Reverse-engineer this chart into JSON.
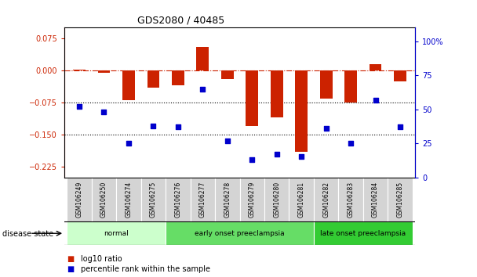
{
  "title": "GDS2080 / 40485",
  "samples": [
    "GSM106249",
    "GSM106250",
    "GSM106274",
    "GSM106275",
    "GSM106276",
    "GSM106277",
    "GSM106278",
    "GSM106279",
    "GSM106280",
    "GSM106281",
    "GSM106282",
    "GSM106283",
    "GSM106284",
    "GSM106285"
  ],
  "log10_ratio": [
    0.002,
    -0.005,
    -0.07,
    -0.04,
    -0.035,
    0.055,
    -0.02,
    -0.13,
    -0.11,
    -0.19,
    -0.065,
    -0.075,
    0.015,
    -0.025
  ],
  "percentile_rank": [
    52,
    48,
    25,
    38,
    37,
    65,
    27,
    13,
    17,
    15,
    36,
    25,
    57,
    37
  ],
  "groups": [
    {
      "label": "normal",
      "start": 0,
      "end": 3,
      "color": "#ccffcc"
    },
    {
      "label": "early onset preeclampsia",
      "start": 4,
      "end": 9,
      "color": "#66dd66"
    },
    {
      "label": "late onset preeclampsia",
      "start": 10,
      "end": 13,
      "color": "#33cc33"
    }
  ],
  "ylim_left": [
    -0.25,
    0.1
  ],
  "yticks_left": [
    -0.225,
    -0.15,
    -0.075,
    0,
    0.075
  ],
  "ylim_right": [
    0,
    110
  ],
  "yticks_right": [
    0,
    25,
    50,
    75,
    100
  ],
  "bar_color": "#cc2200",
  "scatter_color": "#0000cc",
  "hline_color": "#cc2200",
  "dotted_line_color": "#000000",
  "background_color": "#ffffff",
  "label_log10": "log10 ratio",
  "label_percentile": "percentile rank within the sample",
  "disease_state_label": "disease state"
}
